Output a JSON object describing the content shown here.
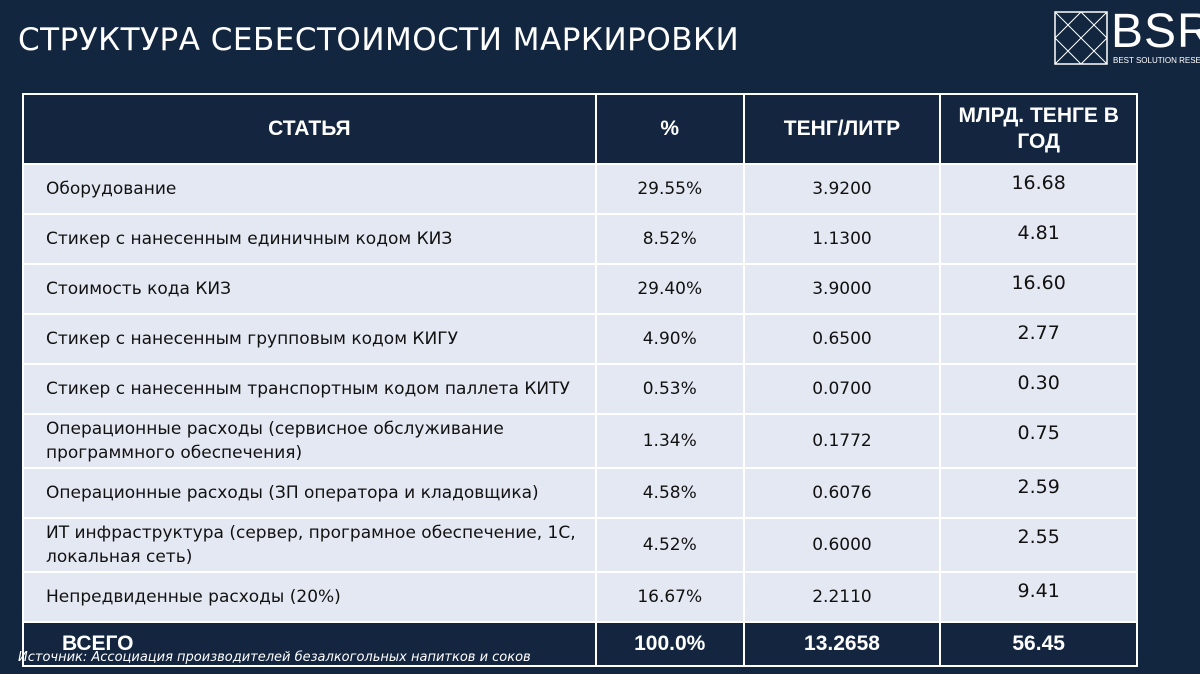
{
  "header": {
    "title": "СТРУКТУРА СЕБЕСТОИМОСТИ МАРКИРОВКИ",
    "logo": "BSR",
    "logo_subtitle": "BEST SOLUTION RESEARCH"
  },
  "table": {
    "columns": [
      "СТАТЬЯ",
      "%",
      "ТЕНГ/ЛИТР",
      "МЛРД. ТЕНГЕ В ГОД"
    ],
    "rows": [
      [
        "Оборудование",
        "29.55%",
        "3.9200",
        "16.68"
      ],
      [
        "Стикер с нанесенным единичным кодом КИЗ",
        "8.52%",
        "1.1300",
        "4.81"
      ],
      [
        "Стоимость кода КИЗ",
        "29.40%",
        "3.9000",
        "16.60"
      ],
      [
        "Стикер с нанесенным групповым кодом КИГУ",
        "4.90%",
        "0.6500",
        "2.77"
      ],
      [
        "Стикер с нанесенным транспортным кодом паллета КИТУ",
        "0.53%",
        "0.0700",
        "0.30"
      ],
      [
        "Операционные расходы (сервисное обслуживание программного обеспечения)",
        "1.34%",
        "0.1772",
        "0.75"
      ],
      [
        "Операционные расходы (ЗП оператора и кладовщика)",
        "4.58%",
        "0.6076",
        "2.59"
      ],
      [
        "ИТ инфраструктура (сервер, програмное обеспечение, 1С, локальная сеть)",
        "4.52%",
        "0.6000",
        "2.55"
      ],
      [
        "Непредвиденные расходы (20%)",
        "16.67%",
        "2.2110",
        "9.41"
      ]
    ],
    "total": [
      "ВСЕГО",
      "100.0%",
      "13.2658",
      "56.45"
    ]
  },
  "source": "Источник: Ассоциация производителей безалкогольных напитков и соков"
}
